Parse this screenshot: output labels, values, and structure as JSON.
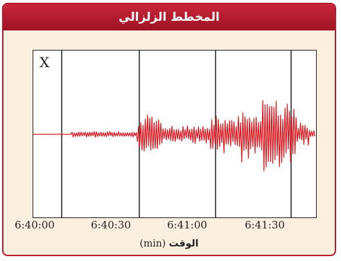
{
  "title": "المخطط الزلزالي",
  "marker_label": "X",
  "axis": {
    "ticks": [
      "6:40:00",
      "6:40:30",
      "6:41:00",
      "6:41:30"
    ],
    "label_unit": "(min)",
    "label_word": "الوقت"
  },
  "colors": {
    "header": "#b51b2b",
    "background": "#fbf0df",
    "trace": "#d8161e",
    "gridline": "#111111"
  }
}
